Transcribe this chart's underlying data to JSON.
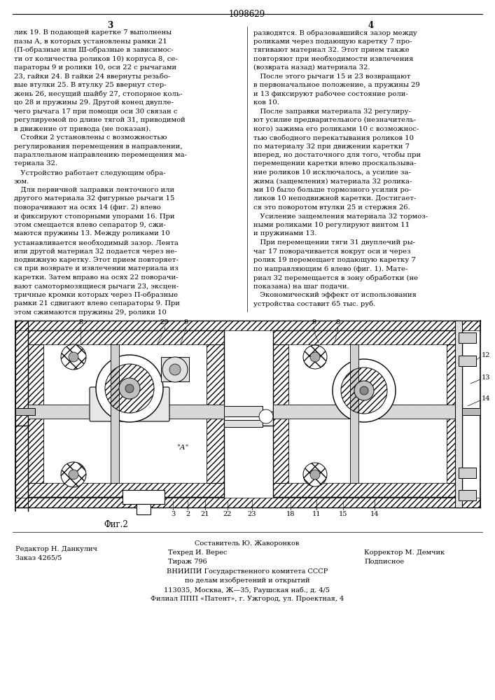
{
  "patent_number": "1098629",
  "page_left": "3",
  "page_right": "4",
  "col_left": [
    "лик 19. В подающей каретке 7 выполнены",
    "пазы А, в которых установлены рамки 21",
    "(П-образные или Ш-образные в зависимос-",
    "ти от количества роликов 10) корпуса 8, се-",
    "параторы 9 и ролики 10, оси 22 с рычагами",
    "23, гайки 24. В гайки 24 ввернуты резьбо-",
    "вые втулки 25. В втулку 25 ввернут стер-",
    "жень 26, несущий шайбу 27, стопорное коль-",
    "цо 28 и пружины 29. Другой конец двупле-",
    "чего рычага 17 при помощи оси 30 связан с",
    "регулируемой по длине тягой 31, приводимой",
    "в движение от привода (не показан).",
    "   Стойки 2 установлены с возможностью",
    "регулирования перемещения в направлении,",
    "параллельном направлению перемещения ма-",
    "териала 32.",
    "   Устройство работает следующим обра-",
    "зом.",
    "   Для первичной заправки ленточного или",
    "другого материала 32 фигурные рычаги 15",
    "поворачивают на осях 14 (фиг. 2) влево",
    "и фиксируют стопорными упорами 16. При",
    "этом смещается влево сепаратор 9, сжи-",
    "маются пружины 13. Между роликами 10",
    "устанавливается необходимый зазор. Лента",
    "или другой материал 32 подается через не-",
    "подвижную каретку. Этот прием повторяет-",
    "ся при возврате и извлечении материала из",
    "каретки. Затем вправо на осях 22 поворачи-",
    "вают самотормозящиеся рычаги 23, эксцен-",
    "тричные кромки которых через П-образные",
    "рамки 21 сдвигают влево сепараторы 9. При",
    "этом сжимаются пружины 29, ролики 10"
  ],
  "col_right": [
    "разводятся. В образовавшийся зазор между",
    "роликами через подающую каретку 7 про-",
    "тягивают материал 32. Этот прием также",
    "повторяют при необходимости извлечения",
    "(возврата назад) материала 32.",
    "   После этого рычаги 15 и 23 возвращают",
    "в первоначальное положение, а пружины 29",
    "и 13 фиксируют рабочее состояние роли-",
    "ков 10.",
    "   После заправки материала 32 регулиру-",
    "ют усилие предварительного (незначитель-",
    "ного) зажима его роликами 10 с возможнос-",
    "тью свободного перекатывания роликов 10",
    "по материалу 32 при движении каретки 7",
    "вперед, но достаточного для того, чтобы при",
    "перемещении каретки влево проскальзыва-",
    "ние роликов 10 исключалось, а усилие за-",
    "жима (защемления) материала 32 ролика-",
    "ми 10 было больше тормозного усилия ро-",
    "ликов 10 неподвижной каретки. Достигает-",
    "ся это поворотом втулки 25 и стержня 26.",
    "   Усиление защемления материала 32 тормоз-",
    "ными роликами 10 регулируют винтом 11",
    "и пружинами 13.",
    "   При перемещении тяги 31 двуплечий ры-",
    "чаг 17 поворачивается вокруг оси и через",
    "ролик 19 перемещает подающую каретку 7",
    "по направляющим 6 влево (фиг. 1). Мате-",
    "риал 32 перемещается в зону обработки (не",
    "показана) на шаг подачи.",
    "   Экономический эффект от использования",
    "устройства составит 65 тыс. руб."
  ],
  "fig_label": "Фиг.2",
  "footer_col1_line1": "Редактор Н. Данкулич",
  "footer_col1_line2": "Заказ 4265/5",
  "footer_col2_line1": "Составитель Ю. Жаворонков",
  "footer_col2_line2": "Техред И. Верес",
  "footer_col3_line2": "Корректор М. Демчик",
  "footer_col2_line3": "Тираж 796",
  "footer_col3_line3": "Подписное",
  "footer_center1": "ВНИИПИ Государственного комитета СССР",
  "footer_center2": "по делам изобретений и открытий",
  "footer_center3": "113035, Москва, Ж—35, Раушская наб., д. 4/5",
  "footer_center4": "Филиал ППП «Патент», г. Ужгород, ул. Проектная, 4",
  "bg_color": "#ffffff",
  "text_color": "#000000"
}
